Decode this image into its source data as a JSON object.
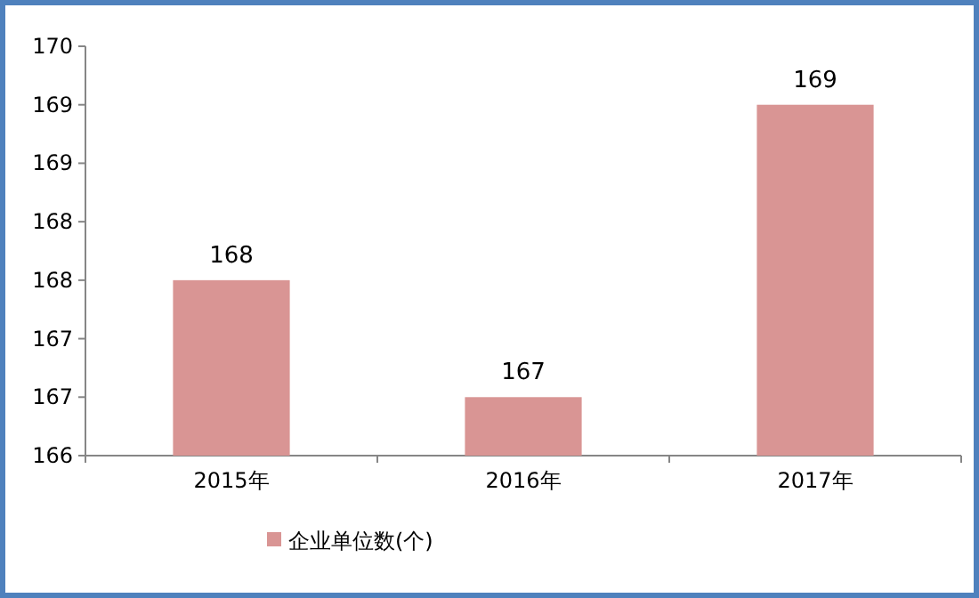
{
  "chart_data": {
    "type": "bar",
    "categories": [
      "2015年",
      "2016年",
      "2017年"
    ],
    "series": [
      {
        "name": "企业单位数(个)",
        "color": "#d99594",
        "values": [
          167.5,
          166.5,
          169
        ],
        "value_labels": [
          "168",
          "167",
          "169"
        ]
      }
    ],
    "ylim": [
      166,
      169.5
    ],
    "yticks": [
      {
        "value": 166,
        "label": "166"
      },
      {
        "value": 166.5,
        "label": "167"
      },
      {
        "value": 167,
        "label": "167"
      },
      {
        "value": 167.5,
        "label": "168"
      },
      {
        "value": 168,
        "label": "168"
      },
      {
        "value": 168.5,
        "label": "169"
      },
      {
        "value": 169,
        "label": "169"
      },
      {
        "value": 169.5,
        "label": "170"
      }
    ],
    "legend": "bottom"
  }
}
